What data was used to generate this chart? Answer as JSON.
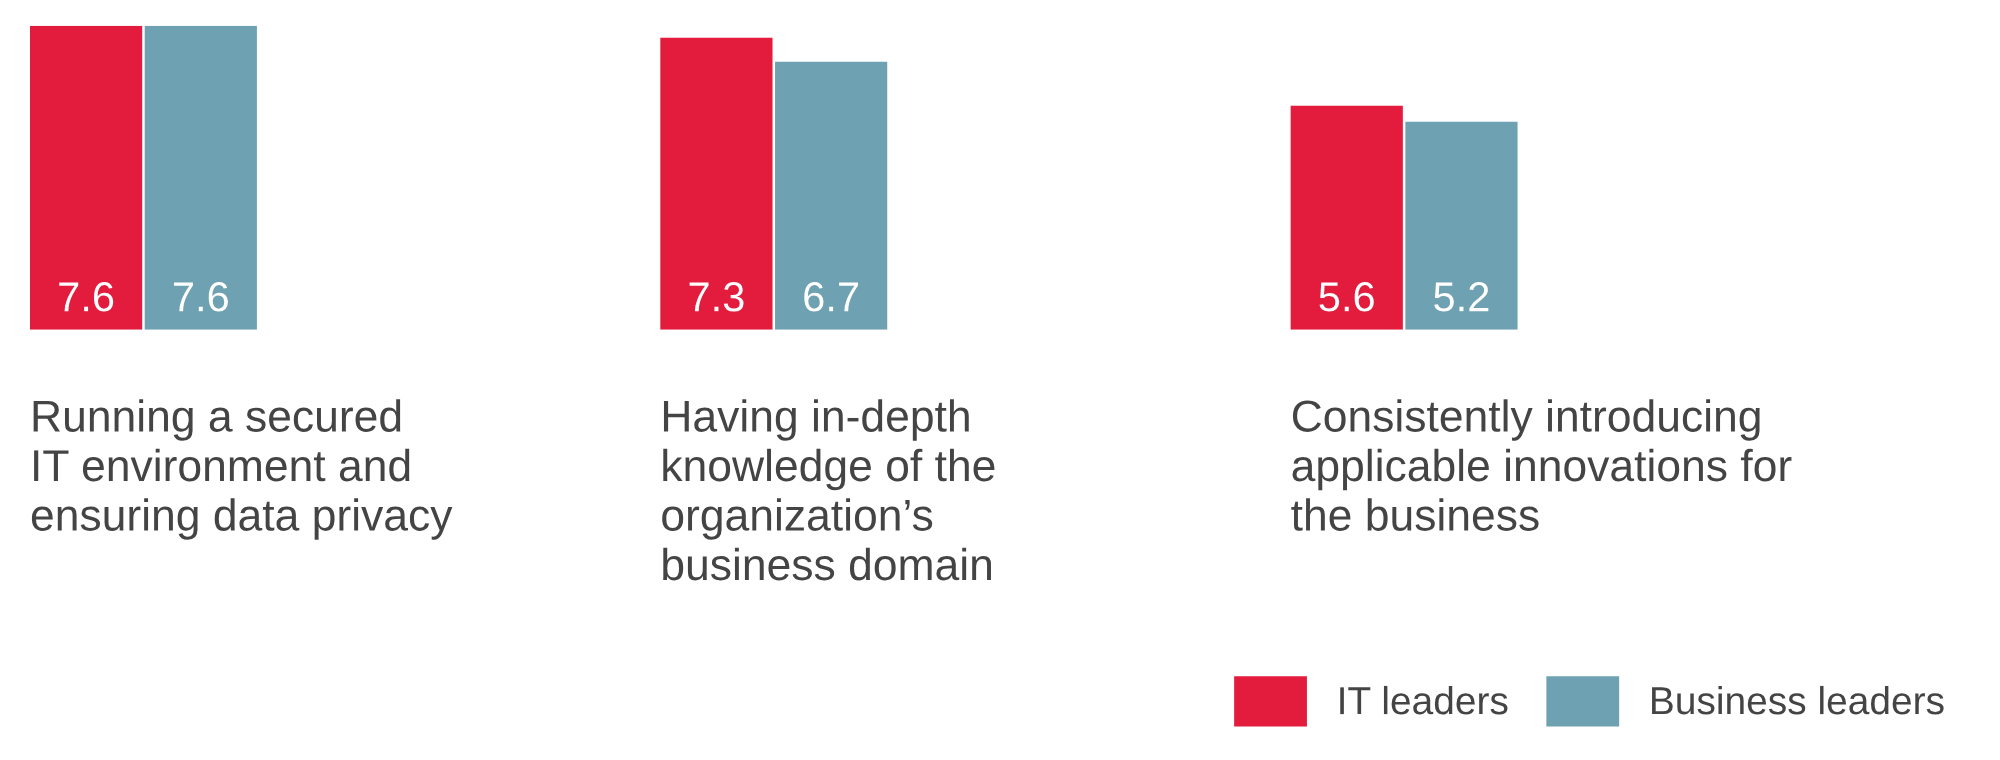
{
  "chart_data": {
    "type": "bar",
    "categories": [
      "Running a secured\nIT environment and\nensuring data privacy",
      "Having in-depth\nknowledge of the\norganization’s\nbusiness domain",
      "Consistently introducing\napplicable innovations for\nthe business"
    ],
    "series": [
      {
        "name": "IT leaders",
        "color": "#e31b3d",
        "values": [
          7.6,
          7.3,
          5.6
        ]
      },
      {
        "name": "Business leaders",
        "color": "#6ea1b2",
        "values": [
          7.6,
          6.7,
          5.2
        ]
      }
    ],
    "data_labels": true,
    "legend": "bottom right",
    "grid": false
  }
}
